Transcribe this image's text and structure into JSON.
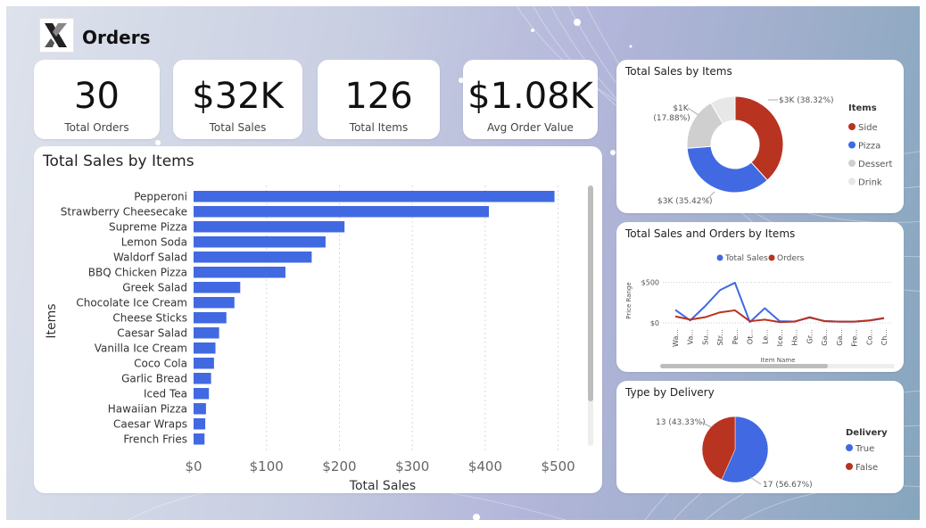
{
  "header": {
    "title": "Orders"
  },
  "kpis": [
    {
      "value": "30",
      "label": "Total Orders"
    },
    {
      "value": "$32K",
      "label": "Total Sales"
    },
    {
      "value": "126",
      "label": "Total Items"
    },
    {
      "value": "$1.08K",
      "label": "Avg Order Value"
    }
  ],
  "colors": {
    "blue": "#4169e1",
    "red": "#b83320",
    "grey": "#cfcfcf",
    "lightgrey": "#e7e7e7"
  },
  "chart_data": [
    {
      "id": "bar",
      "type": "bar",
      "orientation": "horizontal",
      "title": "Total Sales by Items",
      "xlabel": "Total Sales",
      "ylabel": "Items",
      "xlim": [
        0,
        520
      ],
      "xticks": [
        0,
        100,
        200,
        300,
        400,
        500
      ],
      "xtick_labels": [
        "$0",
        "$100",
        "$200",
        "$300",
        "$400",
        "$500"
      ],
      "categories": [
        "Pepperoni",
        "Strawberry Cheesecake",
        "Supreme Pizza",
        "Lemon Soda",
        "Waldorf Salad",
        "BBQ Chicken Pizza",
        "Greek Salad",
        "Chocolate Ice Cream",
        "Cheese Sticks",
        "Caesar Salad",
        "Vanilla Ice Cream",
        "Coco Cola",
        "Garlic Bread",
        "Iced Tea",
        "Hawaiian Pizza",
        "Caesar Wraps",
        "French Fries"
      ],
      "values": [
        495,
        405,
        207,
        181,
        162,
        126,
        64,
        56,
        45,
        35,
        30,
        28,
        24,
        21,
        17,
        16,
        15
      ],
      "grid": true
    },
    {
      "id": "donut",
      "type": "pie",
      "variant": "donut",
      "title": "Total Sales by Items",
      "legend_title": "Items",
      "legend_position": "right",
      "labels": [
        "Side",
        "Pizza",
        "Dessert",
        "Drink"
      ],
      "values": [
        38.32,
        35.42,
        17.88,
        8.38
      ],
      "data_labels": [
        "$3K (38.32%)",
        "$3K (35.42%)",
        "$1K (17.88%)",
        ""
      ],
      "colors": [
        "#b83320",
        "#4169e1",
        "#cfcfcf",
        "#e7e7e7"
      ]
    },
    {
      "id": "line",
      "type": "line",
      "title": "Total Sales and Orders by Items",
      "xlabel": "Item Name",
      "ylabel": "Price Range",
      "legend_position": "top",
      "ylim": [
        0,
        540
      ],
      "yticks": [
        0,
        500
      ],
      "ytick_labels": [
        "$0",
        "$500"
      ],
      "categories": [
        "Wa...",
        "Va...",
        "Su...",
        "Str...",
        "Pe...",
        "Ot...",
        "Le...",
        "Ice...",
        "Ha...",
        "Gr...",
        "Ga...",
        "Ga...",
        "Fre...",
        "Co...",
        "Ch..."
      ],
      "series": [
        {
          "name": "Total Sales",
          "color": "#4169e1",
          "values": [
            160,
            30,
            207,
            405,
            495,
            10,
            181,
            21,
            17,
            64,
            24,
            15,
            15,
            28,
            56
          ]
        },
        {
          "name": "Orders",
          "color": "#b83320",
          "values": [
            80,
            40,
            70,
            130,
            155,
            20,
            40,
            10,
            15,
            70,
            20,
            15,
            15,
            30,
            60
          ]
        }
      ]
    },
    {
      "id": "pie",
      "type": "pie",
      "title": "Type by Delivery",
      "legend_title": "Delivery",
      "legend_position": "right",
      "labels": [
        "True",
        "False"
      ],
      "values": [
        17,
        13
      ],
      "data_labels": [
        "17 (56.67%)",
        "13 (43.33%)"
      ],
      "colors": [
        "#4169e1",
        "#b83320"
      ]
    }
  ]
}
